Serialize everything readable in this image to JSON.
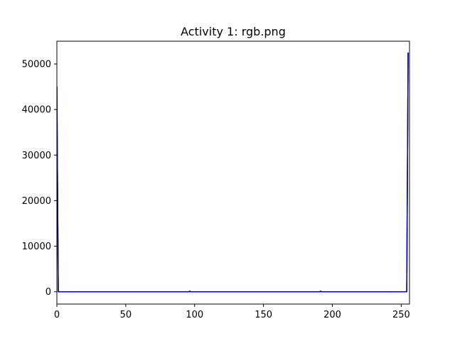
{
  "chart_data": {
    "type": "line",
    "title": "Activity 1: rgb.png",
    "xlabel": "",
    "ylabel": "",
    "xlim": [
      0,
      256
    ],
    "ylim": [
      -2700,
      55000
    ],
    "xticks": [
      0,
      50,
      100,
      150,
      200,
      250
    ],
    "yticks": [
      0,
      10000,
      20000,
      30000,
      40000,
      50000
    ],
    "grid": false,
    "legend": "none",
    "series": [
      {
        "color": "#ff0000",
        "points": [
          [
            0,
            45000
          ],
          [
            1,
            0
          ],
          [
            96,
            0
          ],
          [
            96.5,
            150
          ],
          [
            97,
            0
          ],
          [
            191,
            0
          ],
          [
            191.5,
            150
          ],
          [
            192,
            0
          ],
          [
            254,
            0
          ],
          [
            255,
            52500
          ]
        ]
      },
      {
        "color": "#008000",
        "points": [
          [
            0,
            45000
          ],
          [
            1,
            0
          ],
          [
            96,
            0
          ],
          [
            96.5,
            150
          ],
          [
            97,
            0
          ],
          [
            191,
            0
          ],
          [
            191.5,
            150
          ],
          [
            192,
            0
          ],
          [
            254,
            0
          ],
          [
            255,
            52500
          ]
        ]
      },
      {
        "color": "#0000bb",
        "points": [
          [
            0,
            45000
          ],
          [
            1,
            0
          ],
          [
            96,
            0
          ],
          [
            96.5,
            150
          ],
          [
            97,
            0
          ],
          [
            191,
            0
          ],
          [
            191.5,
            150
          ],
          [
            192,
            0
          ],
          [
            254,
            0
          ],
          [
            255,
            52500
          ]
        ]
      }
    ]
  }
}
